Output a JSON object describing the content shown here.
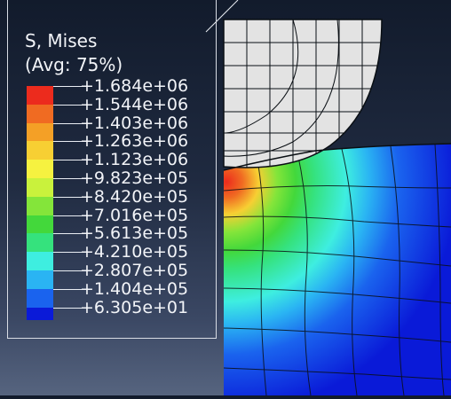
{
  "legend": {
    "title_line1": "S, Mises",
    "title_line2": "(Avg: 75%)",
    "entries": [
      {
        "value": "+1.684e+06",
        "color": "#ec2b1d"
      },
      {
        "value": "+1.544e+06",
        "color": "#f06b22"
      },
      {
        "value": "+1.403e+06",
        "color": "#f4a026"
      },
      {
        "value": "+1.263e+06",
        "color": "#f7cf33"
      },
      {
        "value": "+1.123e+06",
        "color": "#f6f240"
      },
      {
        "value": "+9.823e+05",
        "color": "#c9f23c"
      },
      {
        "value": "+8.420e+05",
        "color": "#84e53a"
      },
      {
        "value": "+7.016e+05",
        "color": "#43d83b"
      },
      {
        "value": "+5.613e+05",
        "color": "#35e27d"
      },
      {
        "value": "+4.210e+05",
        "color": "#3eeee0"
      },
      {
        "value": "+2.807e+05",
        "color": "#2ab4f3"
      },
      {
        "value": "+1.404e+05",
        "color": "#1a63ee"
      },
      {
        "value": "+6.305e+01",
        "color": "#0a1ad8"
      }
    ]
  },
  "colors": {
    "mesh_lines": "#0a0f14",
    "indenter_fill": "#e3e3e3",
    "substrate_base": "#1f42e0"
  }
}
